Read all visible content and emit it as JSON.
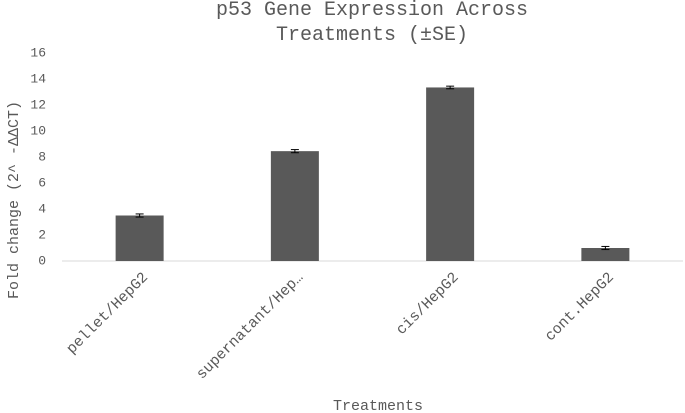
{
  "chart_data": {
    "type": "bar",
    "title": "p53 Gene Expression Across Treatments (±SE)",
    "x_label": "Treatments",
    "y_label": "Fold change (2^ -ΔΔCT)",
    "categories": [
      "pellet/HepG2",
      "supernatant/Hep…",
      "cis/HepG2",
      "cont.HepG2"
    ],
    "values": [
      3.5,
      8.45,
      13.35,
      1.0
    ],
    "errors": [
      0.12,
      0.12,
      0.1,
      0.12
    ],
    "color": "#595959",
    "ylim": [
      0,
      16
    ],
    "yticks": [
      0,
      2,
      4,
      6,
      8,
      10,
      12,
      14,
      16
    ],
    "grid": false
  }
}
